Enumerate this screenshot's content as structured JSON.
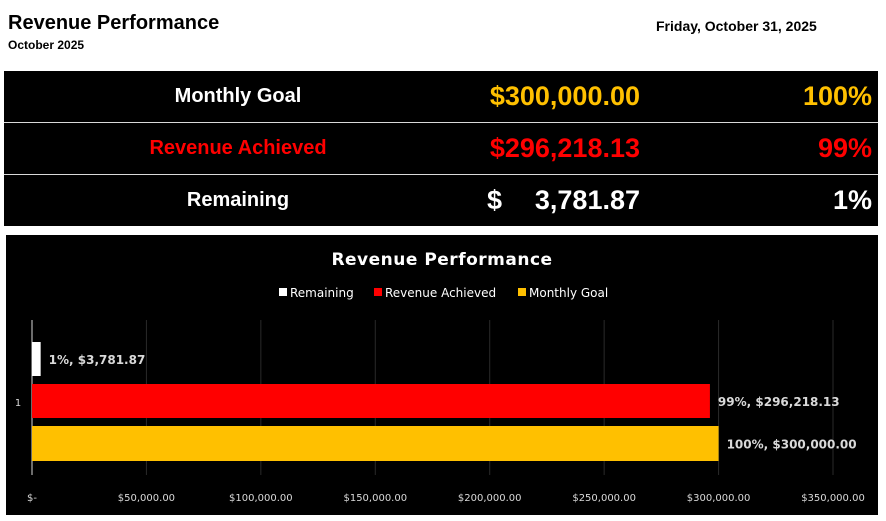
{
  "header": {
    "title": "Revenue Performance",
    "subtitle": "October 2025",
    "date": "Friday, October 31, 2025"
  },
  "summary": {
    "rows": [
      {
        "label": "Monthly Goal",
        "amount": "$300,000.00",
        "percent": "100%",
        "label_color": "#ffffff",
        "value_color": "#ffc000"
      },
      {
        "label": "Revenue Achieved",
        "amount": "$296,218.13",
        "percent": "99%",
        "label_color": "#ff0000",
        "value_color": "#ff0000"
      },
      {
        "label": "Remaining",
        "currency_symbol": "$",
        "amount": "3,781.87",
        "percent": "1%",
        "label_color": "#ffffff",
        "value_color": "#ffffff"
      }
    ]
  },
  "chart_data": {
    "type": "bar",
    "orientation": "horizontal",
    "title": "Revenue Performance",
    "categories": [
      "1"
    ],
    "series": [
      {
        "name": "Remaining",
        "values": [
          3781.87
        ],
        "color": "#ffffff",
        "label": "1%, $3,781.87"
      },
      {
        "name": "Revenue Achieved",
        "values": [
          296218.13
        ],
        "color": "#ff0000",
        "label": "99%, $296,218.13"
      },
      {
        "name": "Monthly Goal",
        "values": [
          300000
        ],
        "color": "#ffc000",
        "label": "100%, $300,000.00"
      }
    ],
    "xlim": [
      0,
      350000
    ],
    "x_ticks": [
      0,
      50000,
      100000,
      150000,
      200000,
      250000,
      300000,
      350000
    ],
    "x_tick_labels": [
      "$-",
      "$50,000.00",
      "$100,000.00",
      "$150,000.00",
      "$200,000.00",
      "$250,000.00",
      "$300,000.00",
      "$350,000.00"
    ],
    "legend_position": "top",
    "grid": true,
    "background": "#000000"
  }
}
